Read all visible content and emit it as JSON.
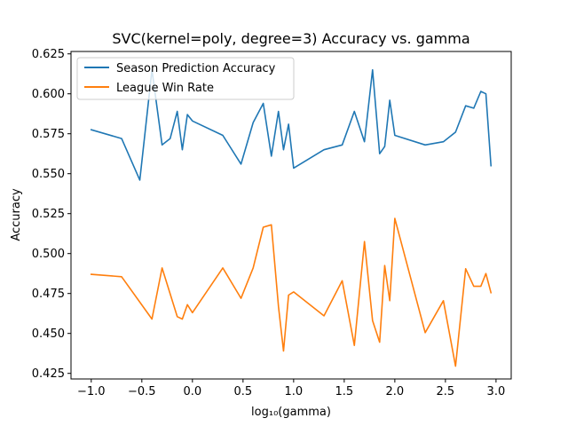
{
  "chart_data": {
    "type": "line",
    "title": "SVC(kernel=poly, degree=3) Accuracy vs. gamma",
    "xlabel": "log₁₀(gamma)",
    "ylabel": "Accuracy",
    "xlim": [
      -1.2,
      3.15
    ],
    "ylim": [
      0.4215,
      0.6265
    ],
    "xticks": [
      -1.0,
      -0.5,
      0.0,
      0.5,
      1.0,
      1.5,
      2.0,
      2.5,
      3.0
    ],
    "xtick_labels": [
      "−1.0",
      "−0.5",
      "0.0",
      "0.5",
      "1.0",
      "1.5",
      "2.0",
      "2.5",
      "3.0"
    ],
    "yticks": [
      0.425,
      0.45,
      0.475,
      0.5,
      0.525,
      0.55,
      0.575,
      0.6,
      0.625
    ],
    "ytick_labels": [
      "0.425",
      "0.450",
      "0.475",
      "0.500",
      "0.525",
      "0.550",
      "0.575",
      "0.600",
      "0.625"
    ],
    "grid": false,
    "legend_position": "top-left",
    "series": [
      {
        "name": "Season Prediction Accuracy",
        "color": "#1f77b4",
        "x": [
          -1.0,
          -0.7,
          -0.52,
          -0.4,
          -0.3,
          -0.22,
          -0.15,
          -0.1,
          -0.05,
          0.0,
          0.3,
          0.48,
          0.6,
          0.7,
          0.78,
          0.85,
          0.9,
          0.95,
          1.0,
          1.3,
          1.48,
          1.6,
          1.7,
          1.78,
          1.85,
          1.9,
          1.95,
          2.0,
          2.3,
          2.48,
          2.6,
          2.7,
          2.78,
          2.85,
          2.9,
          2.95
        ],
        "y": [
          0.5775,
          0.572,
          0.546,
          0.615,
          0.568,
          0.572,
          0.589,
          0.565,
          0.587,
          0.583,
          0.574,
          0.556,
          0.582,
          0.594,
          0.561,
          0.589,
          0.565,
          0.581,
          0.5535,
          0.565,
          0.568,
          0.589,
          0.57,
          0.615,
          0.5625,
          0.567,
          0.596,
          0.574,
          0.568,
          0.57,
          0.576,
          0.5925,
          0.591,
          0.6015,
          0.6,
          0.555
        ]
      },
      {
        "name": "League Win Rate",
        "color": "#ff7f0e",
        "x": [
          -1.0,
          -0.7,
          -0.4,
          -0.3,
          -0.15,
          -0.1,
          -0.05,
          0.0,
          0.3,
          0.48,
          0.6,
          0.7,
          0.78,
          0.85,
          0.9,
          0.95,
          1.0,
          1.3,
          1.48,
          1.6,
          1.7,
          1.78,
          1.85,
          1.9,
          1.95,
          2.0,
          2.3,
          2.48,
          2.6,
          2.7,
          2.78,
          2.85,
          2.9,
          2.95
        ],
        "y": [
          0.487,
          0.4855,
          0.459,
          0.491,
          0.4605,
          0.459,
          0.468,
          0.463,
          0.491,
          0.472,
          0.491,
          0.5165,
          0.518,
          0.467,
          0.439,
          0.474,
          0.476,
          0.461,
          0.483,
          0.4425,
          0.5075,
          0.458,
          0.4445,
          0.4925,
          0.4705,
          0.522,
          0.4505,
          0.4705,
          0.4295,
          0.4905,
          0.4795,
          0.4795,
          0.4875,
          0.4755
        ]
      }
    ]
  }
}
